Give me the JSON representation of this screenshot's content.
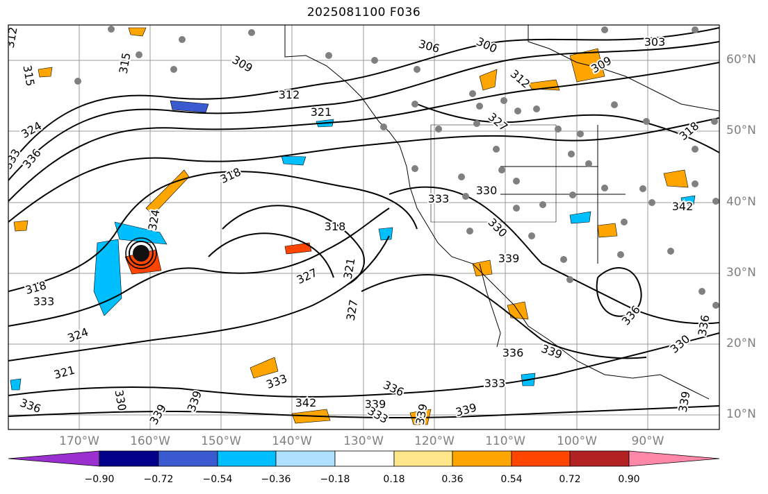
{
  "title": "2025081100 F036",
  "lat_labels": [
    "60°N",
    "50°N",
    "40°N",
    "30°N",
    "20°N",
    "10°N"
  ],
  "lon_labels": [
    "170°W",
    "160°W",
    "150°W",
    "140°W",
    "130°W",
    "120°W",
    "110°W",
    "100°W",
    "90°W"
  ],
  "contour_labels": [
    "312",
    "315",
    "315",
    "309",
    "312",
    "306",
    "300",
    "303",
    "309",
    "312",
    "321",
    "324",
    "336",
    "333",
    "318",
    "327",
    "318",
    "324",
    "318",
    "327",
    "321",
    "327",
    "333",
    "330",
    "330",
    "339",
    "336",
    "318",
    "342",
    "333",
    "324",
    "321",
    "336",
    "330",
    "339",
    "339",
    "342",
    "339",
    "336",
    "339",
    "333",
    "336",
    "339",
    "330",
    "339",
    "336",
    "333",
    "333",
    "339"
  ],
  "colorbar": {
    "ticks": [
      "−0.90",
      "−0.72",
      "−0.54",
      "−0.36",
      "−0.18",
      "0.18",
      "0.36",
      "0.54",
      "0.72",
      "0.90"
    ],
    "colors": [
      "#9b30d0",
      "#00008b",
      "#3a5bd0",
      "#00bfff",
      "#b0e0ff",
      "#ffffff",
      "#ffe68a",
      "#ffa500",
      "#ff4500",
      "#b22222",
      "#ff88a8"
    ]
  }
}
